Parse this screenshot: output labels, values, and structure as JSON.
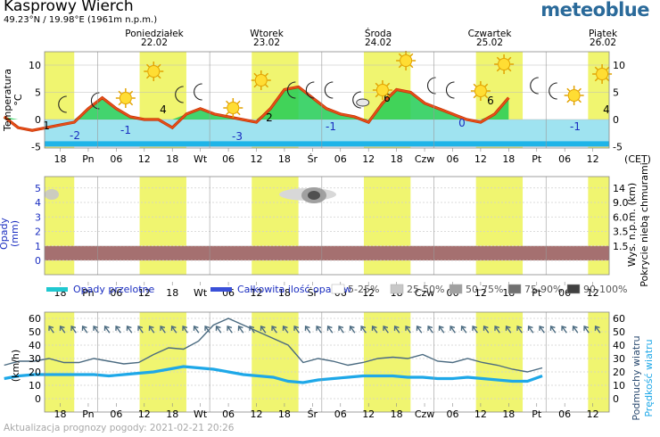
{
  "header": {
    "title": "Kasprowy Wierch",
    "subtitle": "49.23°N / 19.98°E (1961m n.p.m.)",
    "logo": "meteoblue"
  },
  "footer": {
    "updated": "Aktualizacja prognozy pogody: 2021-02-21 20:26"
  },
  "time_axis": {
    "day_headers": [
      {
        "name": "Poniedziałek",
        "date": "22.02"
      },
      {
        "name": "Wtorek",
        "date": "23.02"
      },
      {
        "name": "Środa",
        "date": "24.02"
      },
      {
        "name": "Czwartek",
        "date": "25.02"
      },
      {
        "name": "Piątek",
        "date": "26.02"
      }
    ],
    "tick_labels": [
      "18",
      "Pn",
      "06",
      "12",
      "18",
      "Wt",
      "06",
      "12",
      "18",
      "Śr",
      "06",
      "12",
      "18",
      "Czw",
      "06",
      "12",
      "18",
      "Pt",
      "06",
      "12"
    ],
    "timezone": "(CET)"
  },
  "colors": {
    "daylight": "#f0f570",
    "temp_line": "#e8501a",
    "temp_fill": "#22cc55",
    "below_zero_band": "#9fe3f0",
    "below_m5_band": "#1eb4e8",
    "precip_band": "#a57070",
    "convective_legend": "#20c8d0",
    "total_legend": "#3a50d8",
    "wind_speed": "#1ea8e8",
    "gusts": "#4a6a80",
    "arrows": "#4a6a80"
  },
  "chart_data": [
    {
      "type": "line",
      "title": "Temperatura °C",
      "ylabel": "Temperatura °C",
      "ylim": [
        -5,
        10
      ],
      "yticks": [
        -5,
        0,
        5,
        10
      ],
      "x_start": "2021-02-21 14:00",
      "step_hours": 3,
      "series": [
        {
          "name": "Temperatura",
          "values": [
            0.5,
            -1.5,
            -2,
            -1.5,
            -1,
            -0.5,
            2,
            4,
            2,
            0.5,
            0,
            0,
            -1.5,
            1,
            2,
            1,
            0.5,
            0,
            -0.5,
            2,
            5.5,
            6,
            4,
            2,
            1,
            0.5,
            -0.5,
            3,
            5.5,
            5,
            3,
            2,
            1,
            0,
            -0.5,
            1,
            4
          ]
        }
      ],
      "annotations": [
        "1",
        "-2",
        "-1",
        "4",
        "-3",
        "2",
        "-1",
        "6",
        "0",
        "6",
        "-1",
        "4"
      ],
      "symbols": [
        "sun",
        "crescent",
        "crescent",
        "crescent",
        "sun",
        "sun",
        "crescent",
        "crescent",
        "sun",
        "sun",
        "crescent",
        "crescent",
        "crescent",
        "cloud-moon",
        "sun",
        "sun",
        "crescent",
        "crescent",
        "sun",
        "sun",
        "crescent",
        "crescent",
        "sun",
        "sun"
      ]
    },
    {
      "type": "area",
      "title": "Opady (mm)",
      "ylabel": "Opady (mm)",
      "ylabel_right": "Wys. n.p.m. (km) Pokrycie niebą chmurami",
      "ylim": [
        0,
        5
      ],
      "yticks": [
        0,
        1,
        2,
        3,
        4,
        5
      ],
      "yticks_right": [
        "1.5",
        "3.5",
        "6.0",
        "9.0",
        "14"
      ],
      "series": [
        {
          "name": "Opady przelotne",
          "values": []
        },
        {
          "name": "Całkowita ilość opadów",
          "values": []
        }
      ],
      "legend": [
        "Opady przelotne",
        "Całkowita ilość opadów",
        "5-25%",
        "25-50%",
        "50-75%",
        "75-90%",
        "90-100%"
      ],
      "legend_swatches": [
        "#ffffff",
        "#c8c8c8",
        "#a0a0a0",
        "#707070",
        "#404040"
      ]
    },
    {
      "type": "line",
      "ylabel": "(km/h)",
      "ylabel_right": "Podmuchy wiatru Prędkość wiatru",
      "ylim": [
        0,
        60
      ],
      "yticks": [
        0,
        10,
        20,
        30,
        40,
        50,
        60
      ],
      "series": [
        {
          "name": "Podmuchy wiatru",
          "values": [
            25,
            28,
            28,
            30,
            27,
            27,
            30,
            28,
            26,
            27,
            33,
            38,
            37,
            43,
            55,
            60,
            55,
            50,
            45,
            40,
            27,
            30,
            28,
            25,
            27,
            30,
            31,
            30,
            33,
            28,
            27,
            30,
            27,
            25,
            22,
            20,
            23
          ]
        },
        {
          "name": "Prędkość wiatru",
          "values": [
            15,
            17,
            18,
            18,
            18,
            18,
            18,
            17,
            18,
            19,
            20,
            22,
            24,
            23,
            22,
            20,
            18,
            17,
            16,
            13,
            12,
            14,
            15,
            16,
            17,
            17,
            17,
            16,
            16,
            15,
            15,
            16,
            15,
            14,
            13,
            13,
            17
          ]
        }
      ]
    }
  ]
}
